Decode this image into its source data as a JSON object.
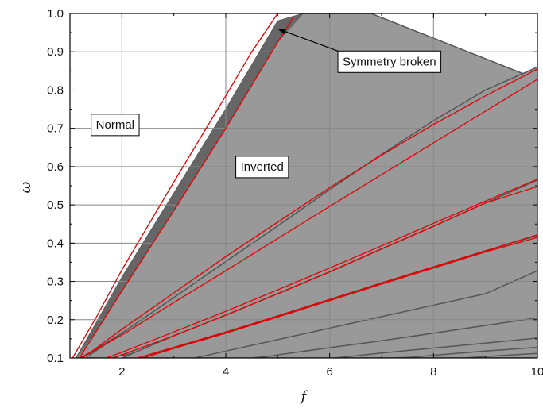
{
  "chart_data": {
    "type": "area",
    "title": "",
    "xlabel": "f",
    "ylabel": "ω",
    "xlim": [
      1,
      10
    ],
    "ylim": [
      0.1,
      1.0
    ],
    "xticks": [
      2,
      4,
      6,
      8,
      10
    ],
    "yticks": [
      0.1,
      0.2,
      0.3,
      0.4,
      0.5,
      0.6,
      0.7,
      0.8,
      0.9,
      1.0
    ],
    "xtick_labels": [
      "2",
      "4",
      "6",
      "8",
      "10"
    ],
    "ytick_labels": [
      "0.1",
      "0.2",
      "0.3",
      "0.4",
      "0.5",
      "0.6",
      "0.7",
      "0.8",
      "0.9",
      "1.0"
    ],
    "grid": true,
    "colors": {
      "inverted_region": "#999999",
      "symmetry_broken_region": "#666666",
      "boundary_line": "#e00000",
      "tongue_edge": "#555555"
    },
    "regions": [
      {
        "name": "tongue-1",
        "lower": {
          "x": [
            1.2,
            1.5,
            2,
            3,
            4,
            5,
            6,
            7,
            8,
            9,
            10
          ],
          "y": [
            0.1,
            0.123,
            0.165,
            0.248,
            0.33,
            0.413,
            0.496,
            0.579,
            0.662,
            0.745,
            0.828
          ]
        },
        "upper": {
          "x": [
            1.12,
            1.5,
            2,
            3,
            4,
            4.5,
            5,
            5.5,
            6,
            6.8
          ],
          "y": [
            0.1,
            0.19,
            0.31,
            0.53,
            0.75,
            0.865,
            0.98,
            1.0,
            1.0,
            1.0
          ]
        },
        "dark_lower_band": {
          "x": [
            1.2,
            1.5,
            2,
            3,
            4,
            5,
            6,
            7,
            8,
            9,
            10
          ],
          "y_bottom": [
            0.1,
            0.115,
            0.157,
            0.24,
            0.322,
            0.405,
            0.488,
            0.571,
            0.654,
            0.737,
            0.82
          ],
          "y_top": [
            0.1,
            0.123,
            0.165,
            0.248,
            0.33,
            0.413,
            0.496,
            0.579,
            0.662,
            0.745,
            0.828
          ]
        },
        "dark_upper_band": {
          "x": [
            1.15,
            1.5,
            2,
            3,
            4,
            4.5,
            5,
            5.5
          ],
          "y_bottom": [
            0.1,
            0.17,
            0.275,
            0.485,
            0.7,
            0.815,
            0.925,
            1.0
          ],
          "y_top": [
            0.1,
            0.19,
            0.31,
            0.53,
            0.75,
            0.865,
            0.98,
            1.0
          ]
        }
      },
      {
        "name": "tongue-2",
        "lower": {
          "x": [
            1.8,
            2,
            3,
            4,
            5,
            6,
            7,
            8,
            9,
            10
          ],
          "y": [
            0.1,
            0.106,
            0.137,
            0.168,
            0.2,
            0.231,
            0.262,
            0.293,
            0.324,
            0.355
          ]
        },
        "upper": {
          "x": [
            1.3,
            2,
            3,
            4,
            5,
            6,
            7,
            8,
            9,
            10
          ],
          "y": [
            0.1,
            0.165,
            0.258,
            0.352,
            0.445,
            0.54,
            0.632,
            0.72,
            0.8,
            0.86
          ]
        }
      },
      {
        "name": "tongue-3",
        "lower": {
          "x": [
            2.5,
            3,
            4,
            5,
            6,
            7,
            8,
            9,
            10
          ],
          "y": [
            0.1,
            0.118,
            0.153,
            0.188,
            0.224,
            0.259,
            0.294,
            0.329,
            0.364
          ]
        },
        "upper": {
          "x": [
            2.0,
            3,
            4,
            5,
            6,
            7,
            8,
            9,
            10
          ],
          "y": [
            0.1,
            0.158,
            0.212,
            0.268,
            0.325,
            0.385,
            0.444,
            0.505,
            0.565
          ]
        }
      },
      {
        "name": "tongue-4",
        "lower": {
          "x": [
            3.4,
            4,
            5,
            6,
            7,
            8,
            9,
            10
          ],
          "y": [
            0.1,
            0.115,
            0.14,
            0.165,
            0.19,
            0.215,
            0.24,
            0.265
          ]
        },
        "upper": {
          "x": [
            2.4,
            3,
            4,
            5,
            6,
            7,
            8,
            9,
            10
          ],
          "y": [
            0.1,
            0.125,
            0.167,
            0.21,
            0.253,
            0.296,
            0.338,
            0.38,
            0.42
          ]
        }
      },
      {
        "name": "tongue-5",
        "lower": {
          "x": [
            4.5,
            5,
            6,
            7,
            8,
            9,
            10
          ],
          "y": [
            0.1,
            0.107,
            0.122,
            0.137,
            0.152,
            0.167,
            0.182
          ]
        },
        "upper": {
          "x": [
            3.4,
            4,
            5,
            6,
            7,
            8,
            9,
            10
          ],
          "y": [
            0.1,
            0.118,
            0.148,
            0.178,
            0.208,
            0.238,
            0.268,
            0.328
          ]
        }
      },
      {
        "name": "tongue-6",
        "lower": {
          "x": [
            6.1,
            7,
            8,
            9,
            10
          ],
          "y": [
            0.1,
            0.108,
            0.118,
            0.128,
            0.138
          ]
        },
        "upper": {
          "x": [
            4.6,
            5,
            6,
            7,
            8,
            9,
            10
          ],
          "y": [
            0.1,
            0.108,
            0.127,
            0.145,
            0.165,
            0.185,
            0.205
          ]
        }
      },
      {
        "name": "tongue-7",
        "lower": {
          "x": [
            7.2,
            8,
            9,
            10
          ],
          "y": [
            0.1,
            0.104,
            0.11,
            0.115
          ]
        },
        "upper": {
          "x": [
            6.1,
            7,
            8,
            9,
            10
          ],
          "y": [
            0.1,
            0.113,
            0.126,
            0.139,
            0.152
          ]
        }
      },
      {
        "name": "tongue-8",
        "lower": {
          "x": [
            8.5,
            9,
            10
          ],
          "y": [
            0.1,
            0.101,
            0.104
          ]
        },
        "upper": {
          "x": [
            7.4,
            8,
            9,
            10
          ],
          "y": [
            0.1,
            0.107,
            0.118,
            0.128
          ]
        }
      },
      {
        "name": "tongue-9",
        "lower": {
          "x": [
            9.7,
            10
          ],
          "y": [
            0.1,
            0.1
          ]
        },
        "upper": {
          "x": [
            8.6,
            9,
            10
          ],
          "y": [
            0.1,
            0.104,
            0.112
          ]
        }
      }
    ],
    "red_curves": [
      {
        "x": [
          1.05,
          1.5,
          2,
          3,
          4,
          4.5,
          5,
          5.3
        ],
        "y": [
          0.1,
          0.205,
          0.33,
          0.56,
          0.785,
          0.9,
          1.0,
          1.0
        ]
      },
      {
        "x": [
          1.18,
          1.5,
          2,
          3,
          4,
          5,
          5.3
        ],
        "y": [
          0.1,
          0.168,
          0.275,
          0.485,
          0.7,
          0.925,
          0.99
        ]
      },
      {
        "x": [
          1.25,
          2,
          3,
          4,
          5,
          6,
          7,
          8,
          9,
          10
        ],
        "y": [
          0.1,
          0.175,
          0.27,
          0.365,
          0.455,
          0.545,
          0.63,
          0.71,
          0.785,
          0.855
        ]
      },
      {
        "x": [
          1.2,
          2,
          3,
          4,
          5,
          6,
          7,
          8,
          9,
          10
        ],
        "y": [
          0.1,
          0.16,
          0.245,
          0.328,
          0.412,
          0.496,
          0.579,
          0.662,
          0.745,
          0.828
        ]
      },
      {
        "x": [
          1.7,
          2,
          3,
          4,
          5,
          6,
          7,
          8,
          9,
          10
        ],
        "y": [
          0.1,
          0.115,
          0.168,
          0.222,
          0.278,
          0.335,
          0.393,
          0.452,
          0.51,
          0.567
        ]
      },
      {
        "x": [
          1.85,
          2,
          3,
          4,
          5,
          6,
          7,
          8,
          9,
          10
        ],
        "y": [
          0.1,
          0.108,
          0.158,
          0.212,
          0.268,
          0.325,
          0.385,
          0.444,
          0.505,
          0.548
        ]
      },
      {
        "x": [
          2.3,
          3,
          4,
          5,
          6,
          7,
          8,
          9,
          10
        ],
        "y": [
          0.1,
          0.128,
          0.168,
          0.21,
          0.253,
          0.296,
          0.338,
          0.38,
          0.422
        ]
      },
      {
        "x": [
          2.4,
          3,
          4,
          5,
          6,
          7,
          8,
          9,
          10
        ],
        "y": [
          0.1,
          0.125,
          0.165,
          0.207,
          0.25,
          0.293,
          0.335,
          0.377,
          0.415
        ]
      }
    ],
    "annotations": [
      {
        "text": "Normal",
        "x": 1.87,
        "y": 0.71
      },
      {
        "text": "Inverted",
        "x": 4.7,
        "y": 0.6
      },
      {
        "text": "Symmetry broken",
        "x": 7.15,
        "y": 0.875,
        "arrow_to": {
          "x": 5.0,
          "y": 0.96
        }
      }
    ]
  }
}
